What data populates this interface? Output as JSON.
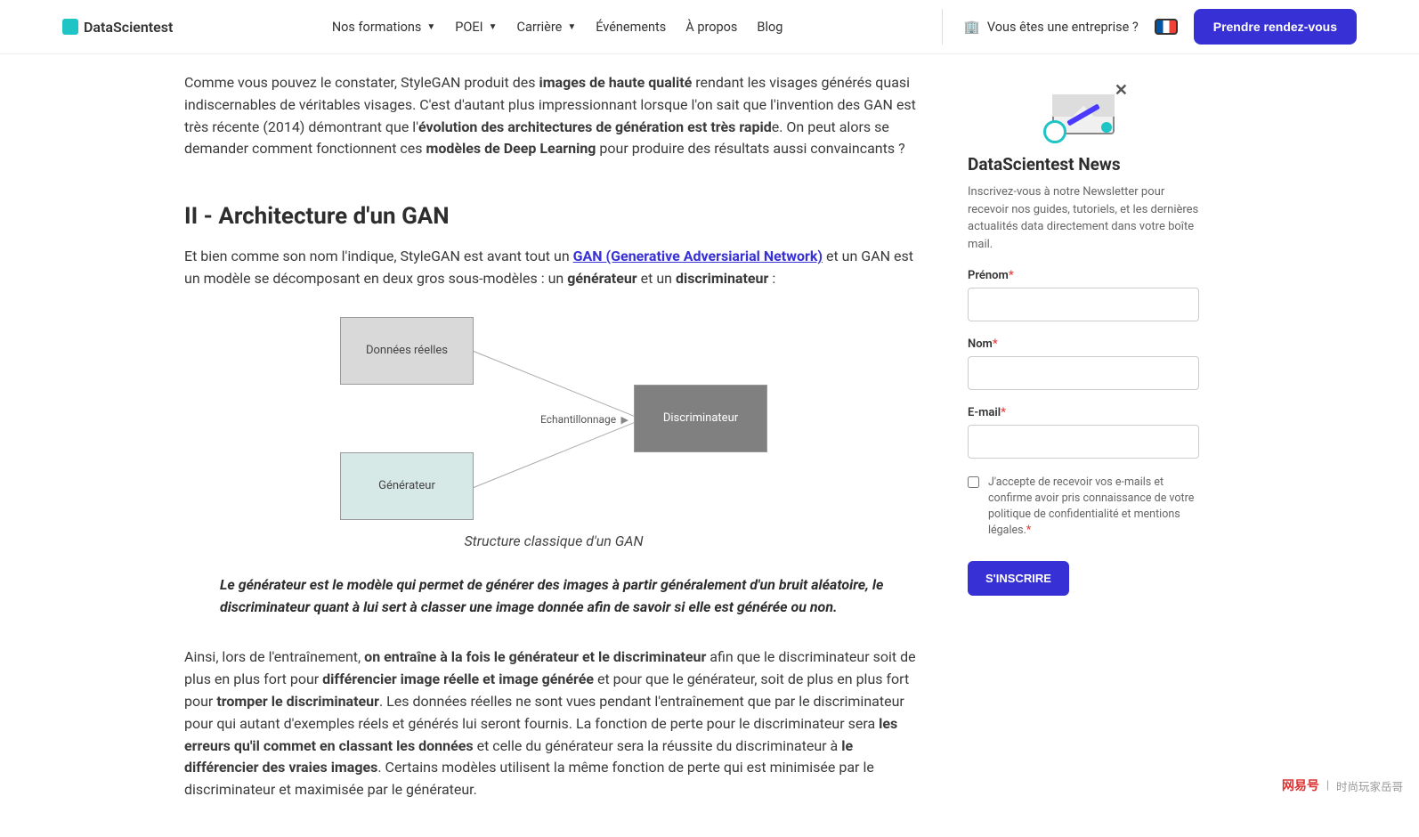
{
  "header": {
    "logo": "DataScientest",
    "nav": {
      "formations": "Nos formations",
      "poei": "POEI",
      "carriere": "Carrière",
      "evenements": "Événements",
      "apropos": "À propos",
      "blog": "Blog"
    },
    "enterprise": "Vous êtes une entreprise ?",
    "cta": "Prendre rendez-vous"
  },
  "content": {
    "p1_a": "Comme vous pouvez le constater, StyleGAN produit des ",
    "p1_b1": "images de haute qualité",
    "p1_c": " rendant les visages générés quasi indiscernables de véritables visages. C'est d'autant plus impressionnant lorsque l'on sait que l'invention des GAN est très récente (2014) démontrant que l'",
    "p1_b2": "évolution des architectures de génération est très rapid",
    "p1_d": "e. On peut alors se demander comment fonctionnent ces ",
    "p1_b3": "modèles de Deep Learning",
    "p1_e": " pour produire des résultats aussi convaincants ?",
    "h2": "II - Architecture d'un GAN",
    "p2_a": "Et bien comme son nom l'indique, StyleGAN est avant tout un ",
    "p2_link": "GAN (Generative Adversiarial Network)",
    "p2_b": " et un GAN est un modèle se décomposant en deux gros sous-modèles : un ",
    "p2_b1": "générateur",
    "p2_c": " et un ",
    "p2_b2": "discriminateur",
    "p2_d": " :",
    "diagram": {
      "real": "Données réelles",
      "gen": "Générateur",
      "disc": "Discriminateur",
      "samp": "Echantillonnage"
    },
    "caption": "Structure classique d'un GAN",
    "quote": "Le générateur est le modèle qui permet de générer des images à partir généralement d'un bruit aléatoire, le discriminateur quant à lui sert à classer une image donnée afin de savoir si elle est générée ou non.",
    "p3_a": "Ainsi, lors de l'entraînement, ",
    "p3_b1": "on entraîne à la fois le générateur et le discriminateur",
    "p3_b": " afin que le discriminateur soit de plus en plus fort pour ",
    "p3_b2": "différencier image réelle et image générée",
    "p3_c": " et pour que le générateur, soit de plus en plus fort pour ",
    "p3_b3": "tromper le discriminateur",
    "p3_d": ". Les données réelles ne sont vues pendant l'entraînement que par le discriminateur pour qui autant d'exemples réels et générés lui seront fournis. La fonction de perte pour le discriminateur sera ",
    "p3_b4": "les erreurs qu'il commet en classant les données",
    "p3_e": " et celle du générateur sera la réussite du discriminateur à ",
    "p3_b5": "le différencier des vraies images",
    "p3_f": ". Certains modèles utilisent la même fonction de perte qui est minimisée par le discriminateur et maximisée par le générateur."
  },
  "sidebar": {
    "title": "DataScientest News",
    "desc": "Inscrivez-vous à notre Newsletter pour recevoir nos guides, tutoriels, et les dernières actualités data directement dans votre boîte mail.",
    "prenom": "Prénom",
    "nom": "Nom",
    "email": "E-mail",
    "consent": "J'accepte de recevoir vos e-mails et confirme avoir pris connaissance de votre politique de confidentialité et mentions légales.",
    "submit": "S'INSCRIRE"
  },
  "watermark": {
    "brand": "网易号",
    "author": "时尚玩家岳哥"
  }
}
